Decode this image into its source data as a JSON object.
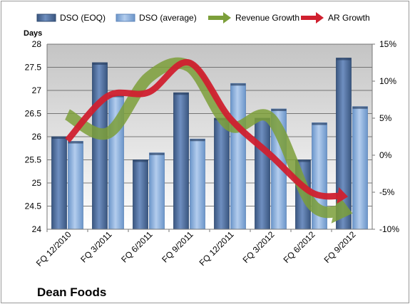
{
  "chart_data": {
    "type": "bar",
    "title": "",
    "brand_label": "Dean Foods",
    "ylabel": "Days",
    "y2label": "",
    "ylim": [
      24,
      28
    ],
    "yticks": [
      "24",
      "24.5",
      "25",
      "25.5",
      "26",
      "26.5",
      "27",
      "27.5",
      "28"
    ],
    "y2lim": [
      -10,
      15
    ],
    "y2ticks": [
      "-10%",
      "-5%",
      "0%",
      "5%",
      "10%",
      "15%"
    ],
    "grid": true,
    "legend_position": "top",
    "categories": [
      "FQ 12/2010",
      "FQ 3/2011",
      "FQ 6/2011",
      "FQ 9/2011",
      "FQ 12/2011",
      "FQ 3/2012",
      "FQ 6/2012",
      "FQ 9/2012"
    ],
    "series": [
      {
        "name": "DSO (EOQ)",
        "kind": "bar",
        "axis": "left",
        "color": "#4f6f9c",
        "values": [
          26.0,
          27.6,
          25.5,
          26.95,
          26.4,
          26.4,
          25.5,
          27.7
        ]
      },
      {
        "name": "DSO (average)",
        "kind": "bar",
        "axis": "left",
        "color": "#8fb1dc",
        "values": [
          25.9,
          26.9,
          25.65,
          25.95,
          27.15,
          26.6,
          26.3,
          26.65
        ]
      },
      {
        "name": "Revenue Growth",
        "kind": "line",
        "axis": "right",
        "color": "#7c9f3a",
        "values": [
          5.5,
          3.0,
          10.5,
          12.0,
          4.0,
          5.0,
          -6.5,
          -7.5
        ]
      },
      {
        "name": "AR Growth",
        "kind": "line",
        "axis": "right",
        "color": "#d0202f",
        "values": [
          2.0,
          8.0,
          8.5,
          12.5,
          5.0,
          0.0,
          -5.0,
          -5.5
        ]
      }
    ]
  }
}
